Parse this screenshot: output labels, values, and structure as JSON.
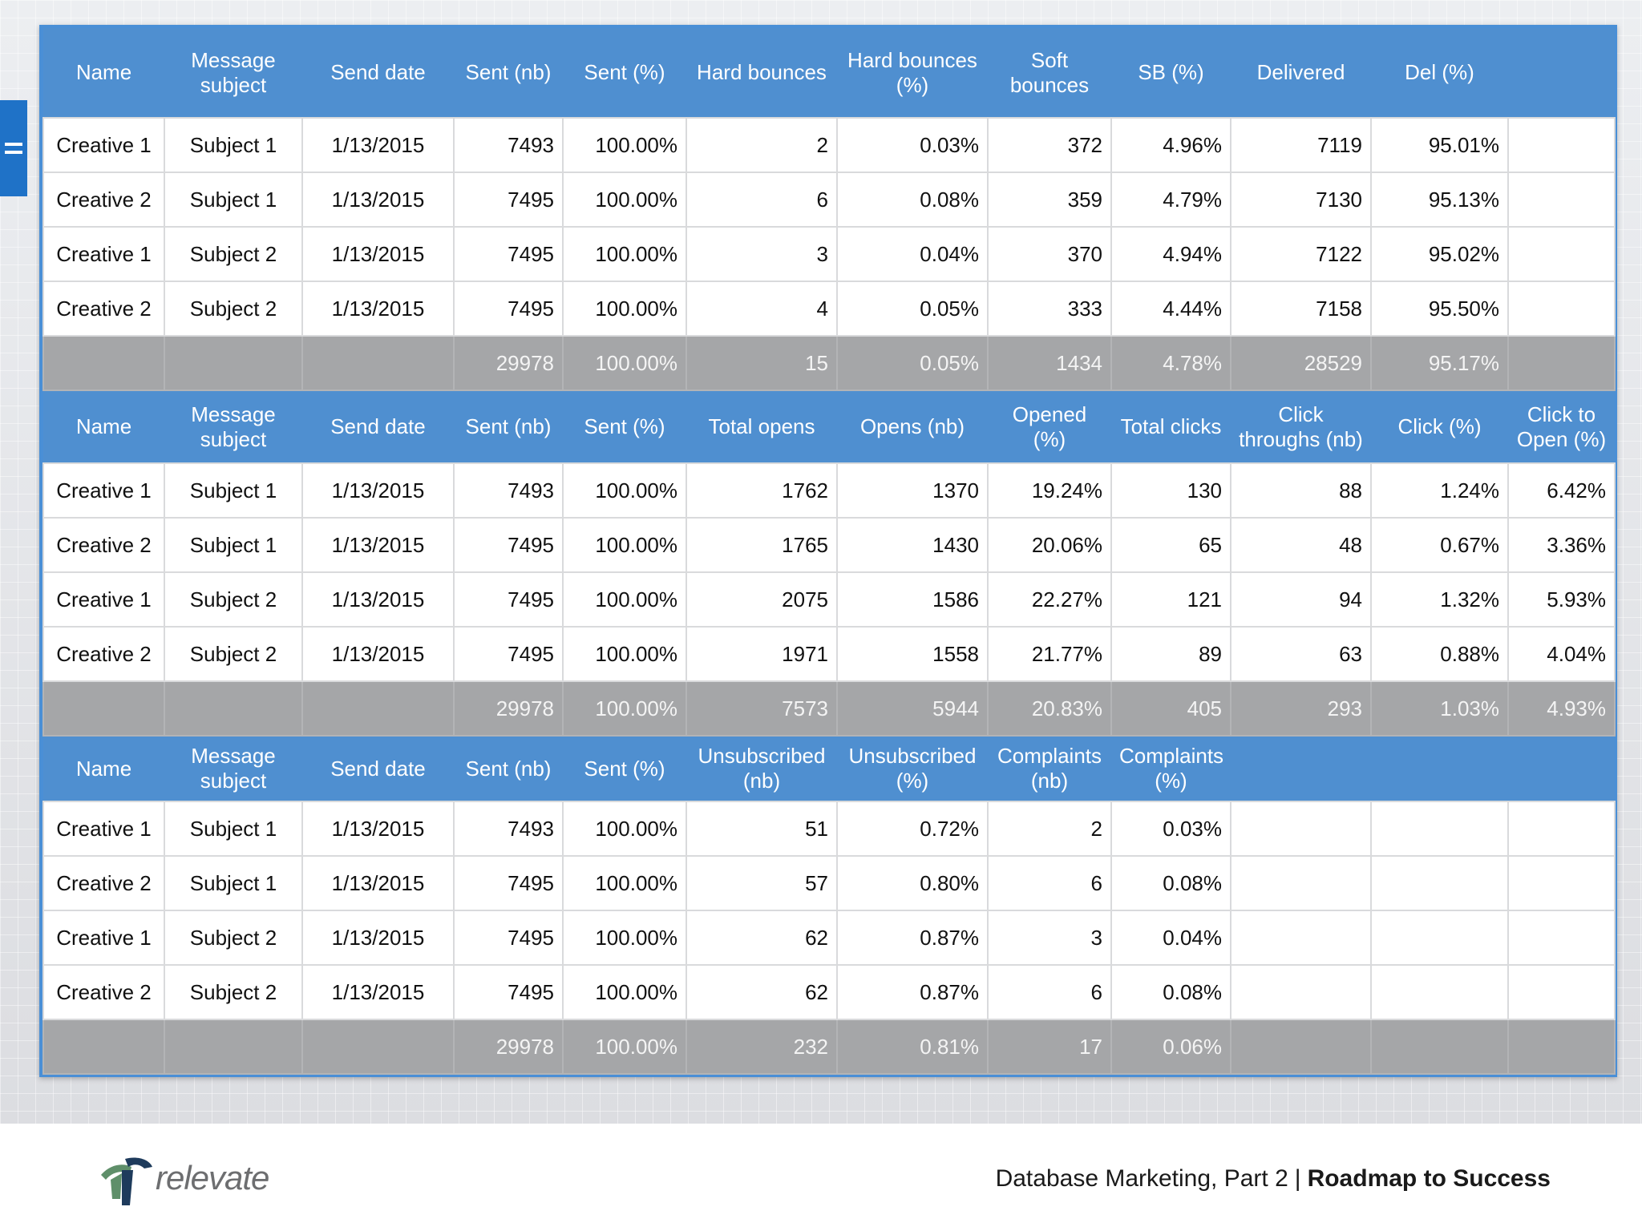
{
  "table1": {
    "headers": [
      "Name",
      "Message subject",
      "Send date",
      "Sent (nb)",
      "Sent (%)",
      "Hard bounces",
      "Hard bounces (%)",
      "Soft bounces",
      "SB (%)",
      "Delivered",
      "Del (%)",
      ""
    ],
    "rows": [
      [
        "Creative 1",
        "Subject 1",
        "1/13/2015",
        "7493",
        "100.00%",
        "2",
        "0.03%",
        "372",
        "4.96%",
        "7119",
        "95.01%",
        ""
      ],
      [
        "Creative 2",
        "Subject 1",
        "1/13/2015",
        "7495",
        "100.00%",
        "6",
        "0.08%",
        "359",
        "4.79%",
        "7130",
        "95.13%",
        ""
      ],
      [
        "Creative 1",
        "Subject 2",
        "1/13/2015",
        "7495",
        "100.00%",
        "3",
        "0.04%",
        "370",
        "4.94%",
        "7122",
        "95.02%",
        ""
      ],
      [
        "Creative 2",
        "Subject 2",
        "1/13/2015",
        "7495",
        "100.00%",
        "4",
        "0.05%",
        "333",
        "4.44%",
        "7158",
        "95.50%",
        ""
      ]
    ],
    "total": [
      "",
      "",
      "",
      "29978",
      "100.00%",
      "15",
      "0.05%",
      "1434",
      "4.78%",
      "28529",
      "95.17%",
      ""
    ]
  },
  "table2": {
    "headers": [
      "Name",
      "Message subject",
      "Send date",
      "Sent (nb)",
      "Sent (%)",
      "Total opens",
      "Opens (nb)",
      "Opened (%)",
      "Total clicks",
      "Click throughs (nb)",
      "Click (%)",
      "Click to Open (%)"
    ],
    "rows": [
      [
        "Creative 1",
        "Subject 1",
        "1/13/2015",
        "7493",
        "100.00%",
        "1762",
        "1370",
        "19.24%",
        "130",
        "88",
        "1.24%",
        "6.42%"
      ],
      [
        "Creative 2",
        "Subject 1",
        "1/13/2015",
        "7495",
        "100.00%",
        "1765",
        "1430",
        "20.06%",
        "65",
        "48",
        "0.67%",
        "3.36%"
      ],
      [
        "Creative 1",
        "Subject 2",
        "1/13/2015",
        "7495",
        "100.00%",
        "2075",
        "1586",
        "22.27%",
        "121",
        "94",
        "1.32%",
        "5.93%"
      ],
      [
        "Creative 2",
        "Subject 2",
        "1/13/2015",
        "7495",
        "100.00%",
        "1971",
        "1558",
        "21.77%",
        "89",
        "63",
        "0.88%",
        "4.04%"
      ]
    ],
    "total": [
      "",
      "",
      "",
      "29978",
      "100.00%",
      "7573",
      "5944",
      "20.83%",
      "405",
      "293",
      "1.03%",
      "4.93%"
    ]
  },
  "table3": {
    "headers": [
      "Name",
      "Message subject",
      "Send date",
      "Sent (nb)",
      "Sent (%)",
      "Unsubscribed (nb)",
      "Unsubscribed (%)",
      "Complaints (nb)",
      "Complaints (%)",
      "",
      "",
      ""
    ],
    "rows": [
      [
        "Creative 1",
        "Subject 1",
        "1/13/2015",
        "7493",
        "100.00%",
        "51",
        "0.72%",
        "2",
        "0.03%",
        "",
        "",
        ""
      ],
      [
        "Creative 2",
        "Subject 1",
        "1/13/2015",
        "7495",
        "100.00%",
        "57",
        "0.80%",
        "6",
        "0.08%",
        "",
        "",
        ""
      ],
      [
        "Creative 1",
        "Subject 2",
        "1/13/2015",
        "7495",
        "100.00%",
        "62",
        "0.87%",
        "3",
        "0.04%",
        "",
        "",
        ""
      ],
      [
        "Creative 2",
        "Subject 2",
        "1/13/2015",
        "7495",
        "100.00%",
        "62",
        "0.87%",
        "6",
        "0.08%",
        "",
        "",
        ""
      ]
    ],
    "total": [
      "",
      "",
      "",
      "29978",
      "100.00%",
      "232",
      "0.81%",
      "17",
      "0.06%",
      "",
      "",
      ""
    ]
  },
  "footer": {
    "logo_text": "relevate",
    "caption_main": "Database Marketing, Part 2",
    "caption_sep": "|",
    "caption_bold": "Roadmap to Success"
  },
  "colors": {
    "header_blue": "#4f8fd0",
    "frame_blue": "#4a8fd6",
    "total_gray": "#a5a6a8",
    "tab_blue": "#1f72c7",
    "logo_green": "#5f8f6a",
    "logo_navy": "#1e3b5c"
  },
  "icons": {
    "side_tab": "menu-tab-icon",
    "logo": "relevate-logo-icon"
  }
}
